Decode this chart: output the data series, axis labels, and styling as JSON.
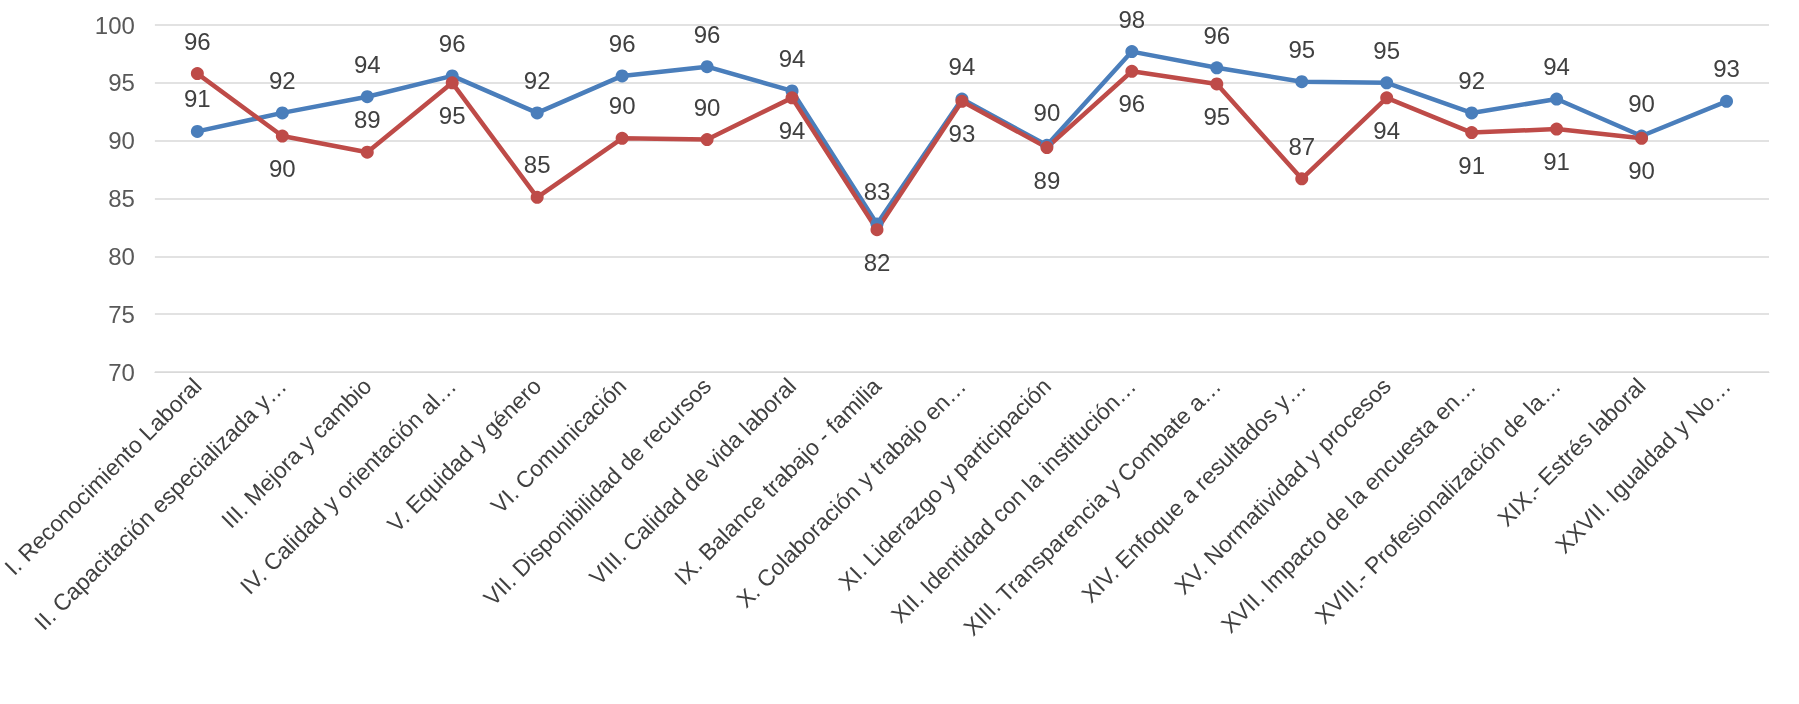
{
  "chart_data": {
    "type": "line",
    "categories": [
      "I. Reconocimiento Laboral",
      "II. Capacitación especializada y…",
      "III. Mejora y cambio",
      "IV. Calidad y orientación al…",
      "V. Equidad y género",
      "VI. Comunicación",
      "VII. Disponibilidad de recursos",
      "VIII. Calidad de vida laboral",
      "IX. Balance trabajo - familia",
      "X. Colaboración y trabajo en…",
      "XI. Liderazgo y participación",
      "XII. Identidad con la institución…",
      "XIII. Transparencia y Combate a…",
      "XIV. Enfoque a resultados y…",
      "XV. Normatividad y procesos",
      "XVII. Impacto de la encuesta en…",
      "XVIII.- Profesionalización de la…",
      "XIX.- Estrés laboral",
      "XXVII. Igualdad y No…"
    ],
    "series": [
      {
        "color": "#4a7ebb",
        "values": [
          90.8,
          92.4,
          93.8,
          95.6,
          92.4,
          95.6,
          96.4,
          94.3,
          82.8,
          93.6,
          89.6,
          97.7,
          96.3,
          95.1,
          95.0,
          92.4,
          93.6,
          90.4,
          93.4
        ],
        "value_labels": [
          "91",
          "92",
          "94",
          "96",
          "92",
          "96",
          "96",
          "94",
          "83",
          "94",
          "90",
          "98",
          "96",
          "95",
          "95",
          "92",
          "94",
          "90",
          "93"
        ]
      },
      {
        "color": "#be4b48",
        "values": [
          95.8,
          90.4,
          89.0,
          95.0,
          85.1,
          90.2,
          90.1,
          93.7,
          82.3,
          93.4,
          89.4,
          96.0,
          94.9,
          86.7,
          93.7,
          90.7,
          91.0,
          90.2,
          null
        ],
        "value_labels": [
          "96",
          "90",
          "89",
          "95",
          "85",
          "90",
          "90",
          "94",
          "82",
          "93",
          "89",
          "96",
          "95",
          "87",
          "94",
          "91",
          "91",
          "90",
          null
        ]
      }
    ],
    "ylim": [
      70,
      100
    ],
    "yticks": [
      70,
      75,
      80,
      85,
      90,
      95,
      100
    ],
    "grid": "y",
    "marker": "circle",
    "line_style": "solid"
  }
}
